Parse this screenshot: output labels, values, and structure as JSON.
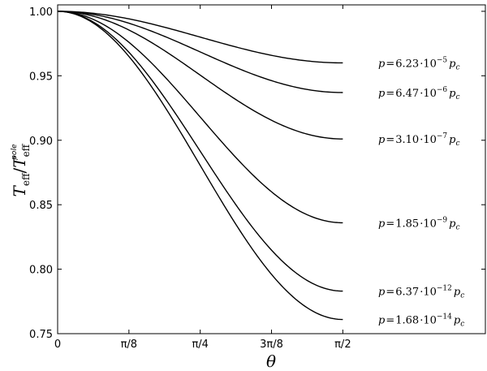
{
  "chart_data": {
    "type": "line",
    "xlabel": "θ",
    "ylabel": {
      "main": "T",
      "sub_num": "eff",
      "slash": "/",
      "main2": "T",
      "sub_den": "eff",
      "sup_den": "pole"
    },
    "xlim": [
      0,
      2.356
    ],
    "ylim": [
      0.75,
      1.005
    ],
    "x_ticks": [
      {
        "value": 0,
        "label": "0"
      },
      {
        "value": 0.3927,
        "label": "π/8"
      },
      {
        "value": 0.7854,
        "label": "π/4"
      },
      {
        "value": 1.1781,
        "label": "3π/8"
      },
      {
        "value": 1.5708,
        "label": "π/2"
      }
    ],
    "y_ticks": [
      {
        "value": 0.75,
        "label": "0.75"
      },
      {
        "value": 0.8,
        "label": "0.80"
      },
      {
        "value": 0.85,
        "label": "0.85"
      },
      {
        "value": 0.9,
        "label": "0.90"
      },
      {
        "value": 0.95,
        "label": "0.95"
      },
      {
        "value": 1.0,
        "label": "1.00"
      }
    ],
    "series": [
      {
        "label": {
          "p": "p",
          "eq": "=",
          "mant": "6.23",
          "dot": "·10",
          "exp": "−5",
          "pc": "p",
          "pcs": "c"
        },
        "end": 0.96
      },
      {
        "label": {
          "p": "p",
          "eq": "=",
          "mant": "6.47",
          "dot": "·10",
          "exp": "−6",
          "pc": "p",
          "pcs": "c"
        },
        "end": 0.937
      },
      {
        "label": {
          "p": "p",
          "eq": "=",
          "mant": "3.10",
          "dot": "·10",
          "exp": "−7",
          "pc": "p",
          "pcs": "c"
        },
        "end": 0.901
      },
      {
        "label": {
          "p": "p",
          "eq": "=",
          "mant": "1.85",
          "dot": "·10",
          "exp": "−9",
          "pc": "p",
          "pcs": "c"
        },
        "end": 0.836
      },
      {
        "label": {
          "p": "p",
          "eq": "=",
          "mant": "6.37",
          "dot": "·10",
          "exp": "−12",
          "pc": "p",
          "pcs": "c"
        },
        "end": 0.783
      },
      {
        "label": {
          "p": "p",
          "eq": "=",
          "mant": "1.68",
          "dot": "·10",
          "exp": "−14",
          "pc": "p",
          "pcs": "c"
        },
        "end": 0.761
      }
    ]
  }
}
